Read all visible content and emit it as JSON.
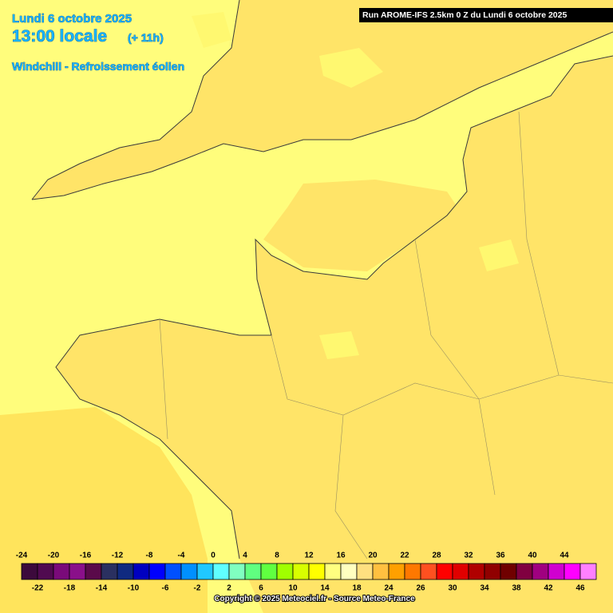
{
  "header": {
    "date": "Lundi 6 octobre 2025",
    "time": "13:00 locale",
    "offset": "(+ 11h)",
    "product": "Windchill - Refroissement éolien",
    "run": "Run AROME-IFS 2.5km 0 Z du Lundi 6 octobre 2025"
  },
  "legend": {
    "values": [
      -24,
      -22,
      -20,
      -18,
      -16,
      -14,
      -12,
      -10,
      -8,
      -6,
      -4,
      -2,
      0,
      2,
      4,
      6,
      8,
      10,
      12,
      14,
      16,
      18,
      20,
      24,
      22,
      26,
      28,
      30,
      32,
      34,
      36,
      38,
      40,
      42,
      44,
      46
    ],
    "colors": [
      "#3c0a3c",
      "#500a50",
      "#7a0a7a",
      "#8a108a",
      "#5a0a4a",
      "#2a3060",
      "#102a80",
      "#0000c0",
      "#0000ff",
      "#0050ff",
      "#0090ff",
      "#20c8ff",
      "#60ffff",
      "#80ffc0",
      "#60ff80",
      "#60ff40",
      "#a0ff00",
      "#d8ff00",
      "#ffff00",
      "#ffff80",
      "#ffffc0",
      "#ffe080",
      "#ffc040",
      "#ffa000",
      "#ff7800",
      "#ff5020",
      "#ff0000",
      "#e00000",
      "#b00000",
      "#900000",
      "#700000",
      "#800040",
      "#a00080",
      "#d000d0",
      "#ff00ff",
      "#ff80ff"
    ]
  },
  "footer": {
    "copyright": "Copyright © 2025 Meteociel.fr - Source Meteo-France"
  }
}
